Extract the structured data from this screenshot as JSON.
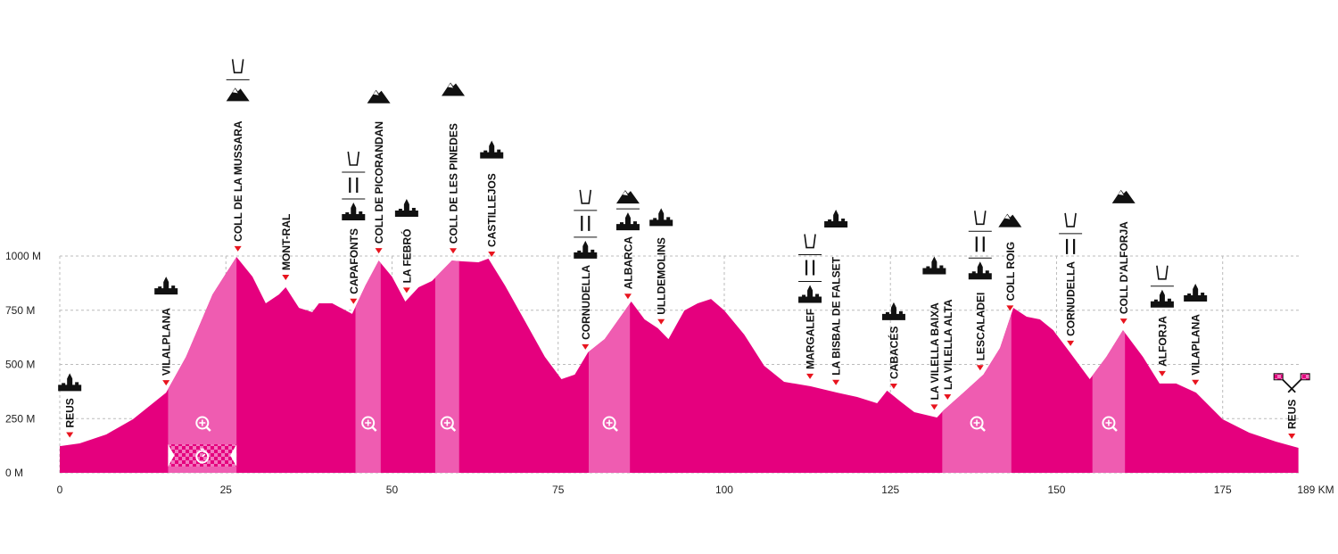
{
  "chart_data": {
    "type": "area",
    "color": "#e5007e",
    "climb_color": "#ef5cb1",
    "x": [
      0,
      3,
      7,
      11,
      16,
      19,
      23,
      26.6,
      29,
      31,
      33,
      34,
      36,
      38,
      39,
      41,
      44,
      46,
      48,
      50,
      52,
      54,
      56,
      59,
      61,
      63,
      64.5,
      67,
      70,
      73,
      75.5,
      77.5,
      79.5,
      82,
      86,
      88,
      90,
      91.6,
      94,
      96,
      98,
      100,
      103,
      106,
      109,
      113,
      117,
      120,
      123,
      124.5,
      126.5,
      128.6,
      132,
      133,
      136,
      139,
      141.5,
      143.5,
      145.5,
      147.5,
      149.5,
      152,
      155,
      157.5,
      160,
      163,
      165.5,
      168,
      171,
      175,
      179,
      183,
      186.4
    ],
    "values": [
      123,
      136,
      177,
      247,
      370,
      535,
      823,
      996,
      905,
      782,
      823,
      856,
      761,
      741,
      782,
      782,
      733,
      864,
      979,
      905,
      790,
      856,
      885,
      979,
      975,
      971,
      988,
      864,
      700,
      535,
      432,
      453,
      556,
      617,
      790,
      708,
      667,
      617,
      749,
      782,
      802,
      749,
      638,
      494,
      420,
      399,
      370,
      350,
      321,
      379,
      329,
      280,
      255,
      288,
      370,
      453,
      576,
      761,
      720,
      708,
      658,
      556,
      432,
      535,
      658,
      535,
      412,
      412,
      370,
      247,
      185,
      144,
      115
    ],
    "xlim": [
      0,
      189
    ],
    "ylim": [
      0,
      1000
    ],
    "xticks": [
      0,
      25,
      50,
      75,
      100,
      125,
      150,
      175,
      {
        "value": 189,
        "label": "189 KM"
      }
    ],
    "yticks": [
      {
        "value": 0,
        "label": "0 M"
      },
      {
        "value": 250,
        "label": "250 M"
      },
      {
        "value": 500,
        "label": "500 M"
      },
      {
        "value": 750,
        "label": "750 M"
      },
      {
        "value": 1000,
        "label": "1000 M"
      }
    ],
    "grid": true,
    "climbs": [
      [
        16.3,
        26.6
      ],
      [
        44.5,
        48.3
      ],
      [
        56.5,
        60.1
      ],
      [
        79.6,
        85.8
      ],
      [
        132.8,
        143.2
      ],
      [
        155.4,
        160.3
      ]
    ],
    "timed_segment": [
      16.3,
      26.6
    ],
    "places": [
      {
        "name": "REUS",
        "km": 1.5
      },
      {
        "name": "VILALPLANA",
        "km": 16
      },
      {
        "name": "COLL DE LA MUSSARA",
        "km": 26.8
      },
      {
        "name": "MONT-RAL",
        "km": 34
      },
      {
        "name": "CAPAFONTS",
        "km": 44.2
      },
      {
        "name": "COLL DE PICORANDAN",
        "km": 48
      },
      {
        "name": "LA FEBRÓ",
        "km": 52.2
      },
      {
        "name": "COLL DE LES PINEDES",
        "km": 59.2
      },
      {
        "name": "CASTILLEJOS",
        "km": 65
      },
      {
        "name": "CORNUDELLA",
        "km": 79.1
      },
      {
        "name": "ALBARCA",
        "km": 85.5
      },
      {
        "name": "ULLDEMOLINS",
        "km": 90.5
      },
      {
        "name": "MARGALEF",
        "km": 112.9
      },
      {
        "name": "LA BISBAL DE FALSET",
        "km": 116.8
      },
      {
        "name": "CABACÉS",
        "km": 125.5
      },
      {
        "name": "LA VILELLA BAIXA",
        "km": 131.6
      },
      {
        "name": "LA VILELLA ALTA",
        "km": 133.6
      },
      {
        "name": "LESCALADEI",
        "km": 138.5
      },
      {
        "name": "COLL ROIG",
        "km": 143
      },
      {
        "name": "CORNUDELLA",
        "km": 152.1
      },
      {
        "name": "COLL D'ALFORJA",
        "km": 160.1
      },
      {
        "name": "ALFORJA",
        "km": 165.9
      },
      {
        "name": "VILAPLANA",
        "km": 170.9
      },
      {
        "name": "REUS",
        "km": 185.4
      }
    ]
  }
}
